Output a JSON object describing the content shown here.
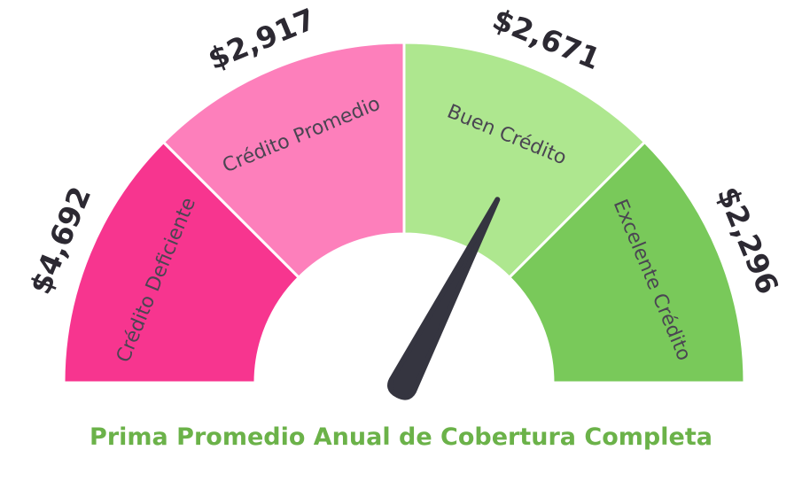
{
  "chart_data": {
    "type": "gauge",
    "title": "Prima Promedio Anual de Cobertura Completa",
    "segments": [
      {
        "label": "Crédito Deficiente",
        "value": "$4,692",
        "color": "#f7358f"
      },
      {
        "label": "Crédito Promedio",
        "value": "$2,917",
        "color": "#fd7fbb"
      },
      {
        "label": "Buen Crédito",
        "value": "$2,671",
        "color": "#aee78f"
      },
      {
        "label": "Excelente Crédito",
        "value": "$2,296",
        "color": "#79c95a"
      }
    ],
    "needle": {
      "category": "Buen Crédito",
      "position_fraction": 0.65,
      "color": "#353540"
    }
  }
}
